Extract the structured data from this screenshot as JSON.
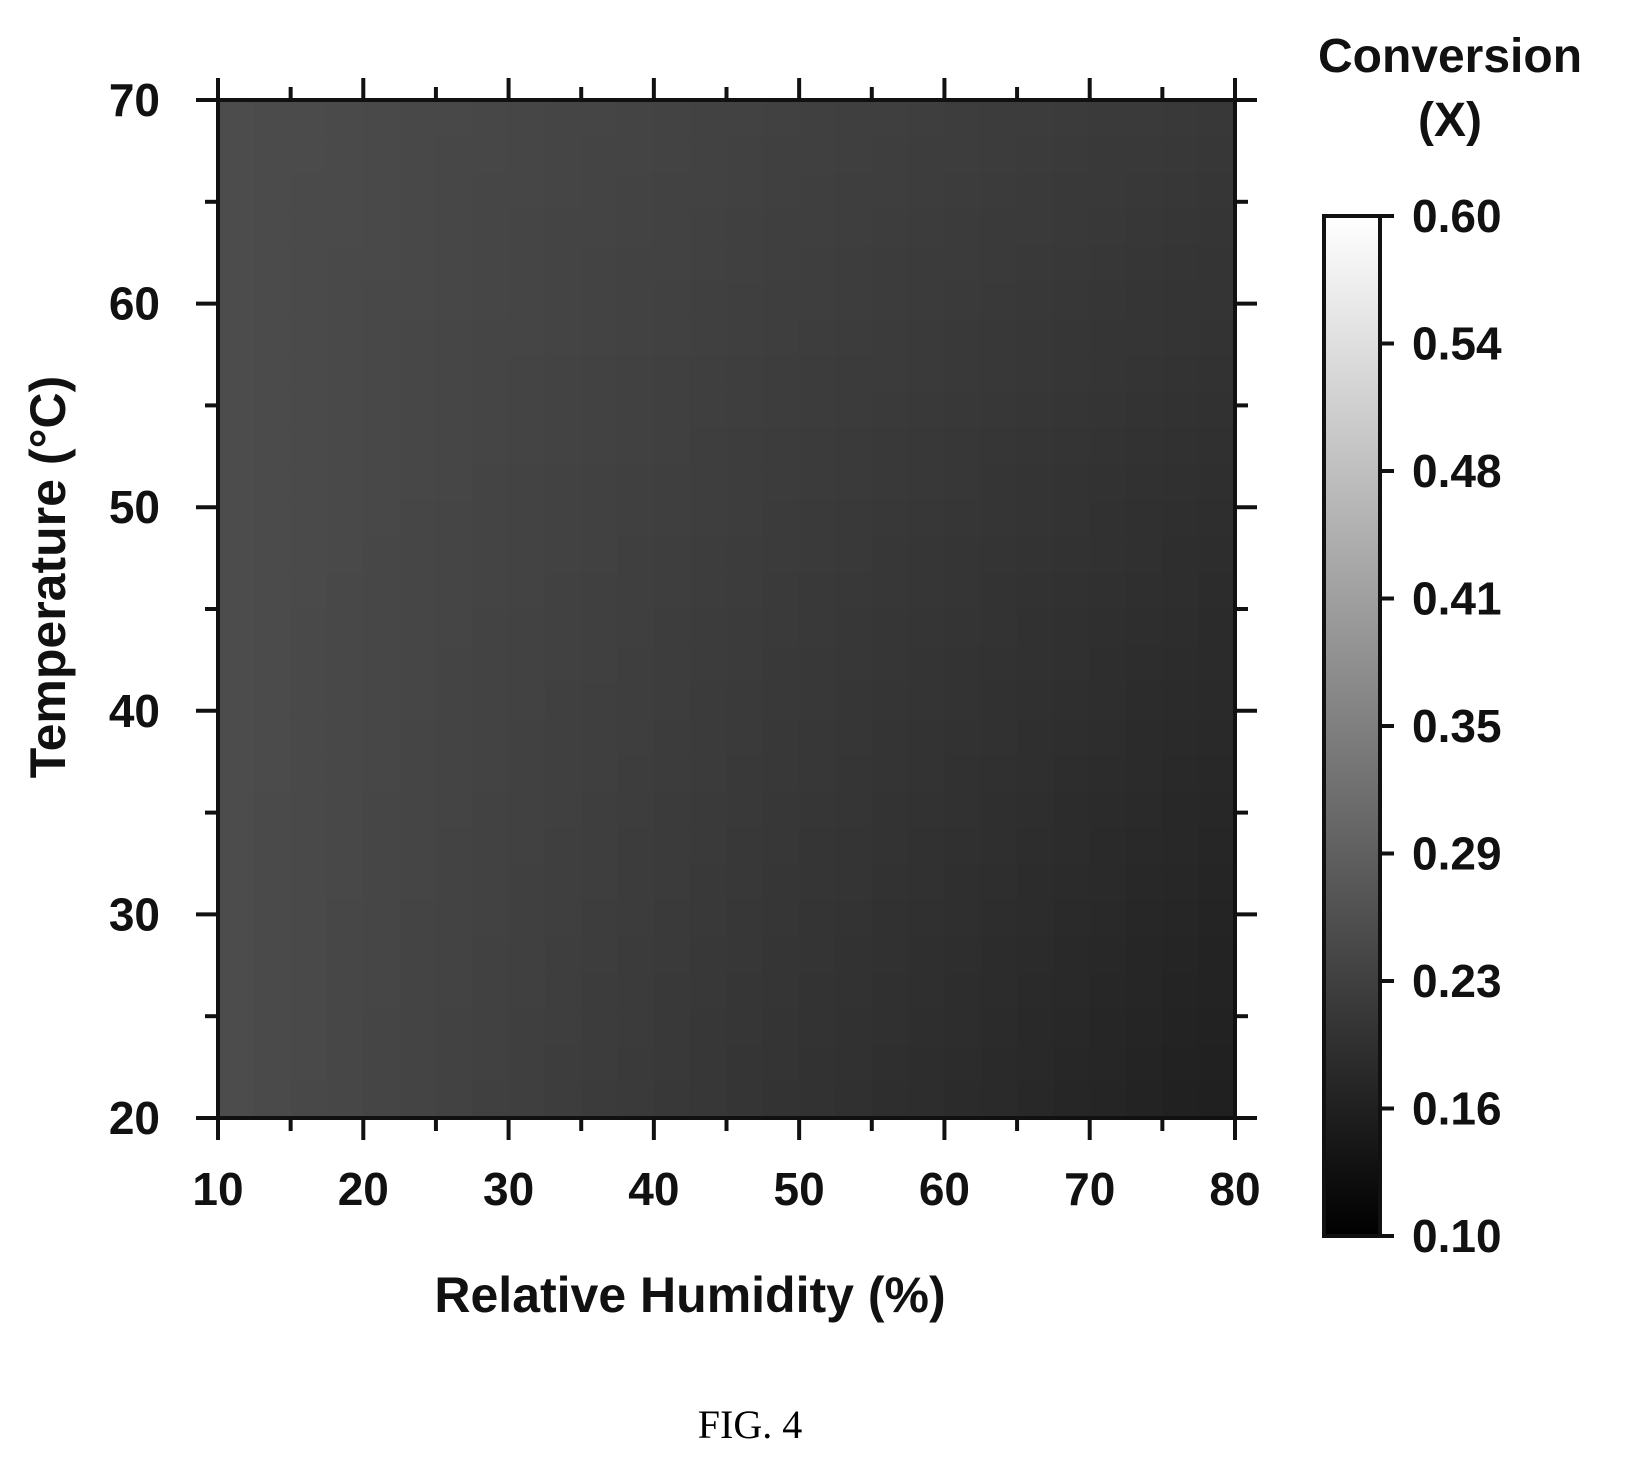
{
  "chart_data": {
    "type": "heatmap",
    "title": "",
    "xlabel": "Relative Humidity (%)",
    "ylabel": "Temperature (°C)",
    "xlim": [
      10,
      80
    ],
    "ylim": [
      20,
      70
    ],
    "x_ticks": [
      "10",
      "20",
      "30",
      "40",
      "50",
      "60",
      "70",
      "80"
    ],
    "y_ticks": [
      "20",
      "30",
      "40",
      "50",
      "60",
      "70"
    ],
    "corner_values": {
      "rh10_t20": 0.25,
      "rh80_t20": 0.16,
      "rh10_t70": 0.25,
      "rh80_t70": 0.21
    },
    "colorbar": {
      "title_line1": "Conversion",
      "title_line2": "(X)",
      "ticks": [
        "0.10",
        "0.16",
        "0.23",
        "0.29",
        "0.35",
        "0.41",
        "0.48",
        "0.54",
        "0.60"
      ],
      "range": [
        0.1,
        0.6
      ],
      "colormap": "grayscale",
      "low_color": "#000000",
      "high_color": "#ffffff"
    }
  },
  "caption": "FIG. 4"
}
